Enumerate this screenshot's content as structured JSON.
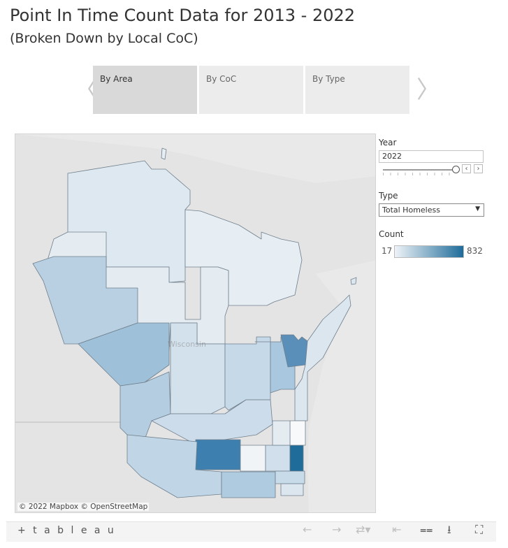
{
  "header": {
    "title": "Point In Time Count Data for 2013 - 2022",
    "subtitle": "(Broken Down by Local CoC)"
  },
  "tabs": [
    {
      "label": "By Area",
      "active": true
    },
    {
      "label": "By CoC",
      "active": false
    },
    {
      "label": "By Type",
      "active": false
    }
  ],
  "map": {
    "state_label": "Wisconsin",
    "attribution": "© 2022 Mapbox  © OpenStreetMap",
    "color_scale": {
      "low": "#eef3f7",
      "high": "#1f6c9a"
    }
  },
  "filters": {
    "year_label": "Year",
    "year_value": "2022",
    "type_label": "Type",
    "type_value": "Total Homeless"
  },
  "legend": {
    "title": "Count",
    "min": "17",
    "max": "832"
  },
  "toolbar": {
    "logo": "+ t a b l e a u",
    "icons": [
      "undo-icon",
      "redo-icon",
      "revert-icon",
      "reset-icon",
      "share-icon",
      "download-icon",
      "fullscreen-icon"
    ]
  }
}
